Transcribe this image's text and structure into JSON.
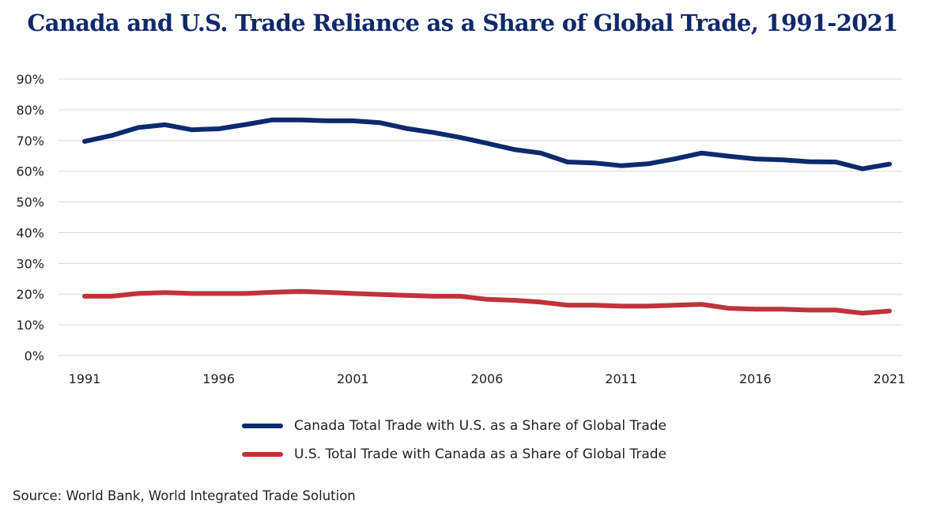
{
  "colors": {
    "canada_series": "#0c2a6e",
    "us_series": "#c0333a",
    "title": "#10296b",
    "grid": "#d9d9d9",
    "text": "#222222"
  },
  "source": "Source: World Bank, World Integrated Trade Solution",
  "chart_data": {
    "type": "line",
    "title": "Canada and U.S. Trade Reliance as a Share of Global Trade, 1991-2021",
    "xlabel": "",
    "ylabel": "",
    "x": [
      1991,
      1992,
      1993,
      1994,
      1995,
      1996,
      1997,
      1998,
      1999,
      2000,
      2001,
      2002,
      2003,
      2004,
      2005,
      2006,
      2007,
      2008,
      2009,
      2010,
      2011,
      2012,
      2013,
      2014,
      2015,
      2016,
      2017,
      2018,
      2019,
      2020,
      2021
    ],
    "x_ticks": [
      "1991",
      "1996",
      "2001",
      "2006",
      "2011",
      "2016",
      "2021"
    ],
    "y_ticks": [
      "0%",
      "10%",
      "20%",
      "30%",
      "40%",
      "50%",
      "60%",
      "70%",
      "80%",
      "90%"
    ],
    "ylim": [
      0,
      90
    ],
    "grid": true,
    "legend_position": "bottom",
    "series": [
      {
        "name": "Canada Total Trade with U.S. as a Share of Global Trade",
        "color": "#0c2a6e",
        "values": [
          69.7,
          71.6,
          74.2,
          75.1,
          73.5,
          73.8,
          75.2,
          76.7,
          76.7,
          76.4,
          76.4,
          75.8,
          73.9,
          72.6,
          71.0,
          69.1,
          67.1,
          65.9,
          63.0,
          62.7,
          61.8,
          62.4,
          64.0,
          65.9,
          64.9,
          64.0,
          63.7,
          63.1,
          63.0,
          60.8,
          62.3
        ]
      },
      {
        "name": "U.S. Total Trade with Canada as a Share of Global Trade",
        "color": "#c0333a",
        "values": [
          19.3,
          19.3,
          20.2,
          20.5,
          20.2,
          20.2,
          20.2,
          20.6,
          20.9,
          20.6,
          20.2,
          19.9,
          19.6,
          19.3,
          19.3,
          18.3,
          18.0,
          17.4,
          16.4,
          16.4,
          16.1,
          16.1,
          16.4,
          16.7,
          15.4,
          15.1,
          15.1,
          14.8,
          14.8,
          13.8,
          14.5
        ]
      }
    ]
  }
}
